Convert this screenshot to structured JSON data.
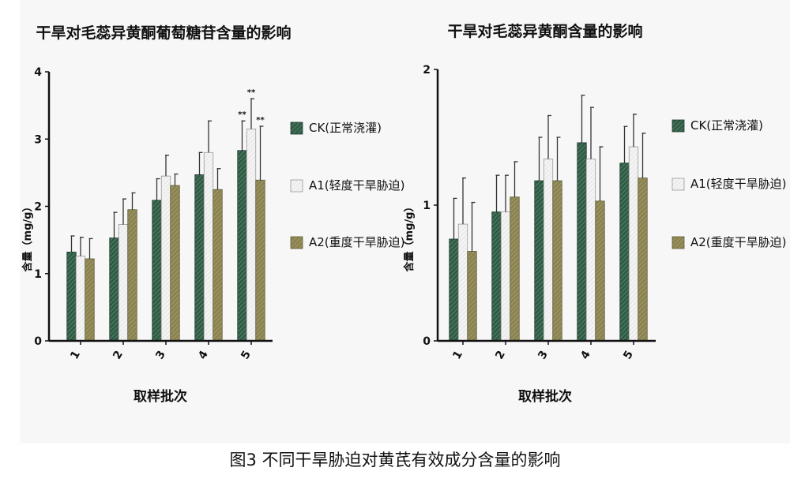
{
  "figure_caption": "图3 不同干旱胁迫对黄芪有效成分含量的影响",
  "colors": {
    "CK": "#2f5a44",
    "A1": "#ececec",
    "A2": "#8a8350",
    "error": "#333333",
    "axis": "#111111"
  },
  "chart_data": [
    {
      "type": "bar",
      "title": "干旱对毛蕊异黄酮葡萄糖苷含量的影响",
      "xlabel": "取样批次",
      "ylabel": "含量（mg/g）",
      "categories": [
        "1",
        "2",
        "3",
        "4",
        "5"
      ],
      "ylim": [
        0,
        4
      ],
      "yticks": [
        "0",
        "1",
        "2",
        "3",
        "4"
      ],
      "series": [
        {
          "name": "CK(正常浇灌)",
          "values": [
            1.32,
            1.53,
            2.09,
            2.47,
            2.83
          ],
          "errors": [
            0.24,
            0.38,
            0.32,
            0.33,
            0.44
          ]
        },
        {
          "name": "A1(轻度干旱胁迫)",
          "values": [
            1.26,
            1.73,
            2.45,
            2.8,
            3.15
          ],
          "errors": [
            0.28,
            0.38,
            0.31,
            0.47,
            0.45
          ]
        },
        {
          "name": "A2(重度干旱胁迫)",
          "values": [
            1.22,
            1.95,
            2.31,
            2.25,
            2.39
          ],
          "errors": [
            0.3,
            0.25,
            0.17,
            0.31,
            0.8
          ]
        }
      ],
      "annotations": [
        {
          "category": "5",
          "series": 0,
          "text": "**"
        },
        {
          "category": "5",
          "series": 1,
          "text": "**"
        },
        {
          "category": "5",
          "series": 2,
          "text": "**"
        }
      ],
      "legend_position": "right"
    },
    {
      "type": "bar",
      "title": "干旱对毛蕊异黄酮含量的影响",
      "xlabel": "取样批次",
      "ylabel": "含量（mg/g）",
      "categories": [
        "1",
        "2",
        "3",
        "4",
        "5"
      ],
      "ylim": [
        0,
        2
      ],
      "yticks": [
        "0",
        "1",
        "2"
      ],
      "series": [
        {
          "name": "CK(正常浇灌)",
          "values": [
            0.75,
            0.95,
            1.18,
            1.46,
            1.31
          ],
          "errors": [
            0.3,
            0.27,
            0.32,
            0.35,
            0.27
          ]
        },
        {
          "name": "A1(轻度干旱胁迫)",
          "values": [
            0.86,
            0.95,
            1.34,
            1.34,
            1.43
          ],
          "errors": [
            0.34,
            0.27,
            0.32,
            0.38,
            0.24
          ]
        },
        {
          "name": "A2(重度干旱胁迫)",
          "values": [
            0.66,
            1.06,
            1.18,
            1.03,
            1.2
          ],
          "errors": [
            0.36,
            0.26,
            0.32,
            0.4,
            0.33
          ]
        }
      ],
      "annotations": [],
      "legend_position": "right"
    }
  ]
}
